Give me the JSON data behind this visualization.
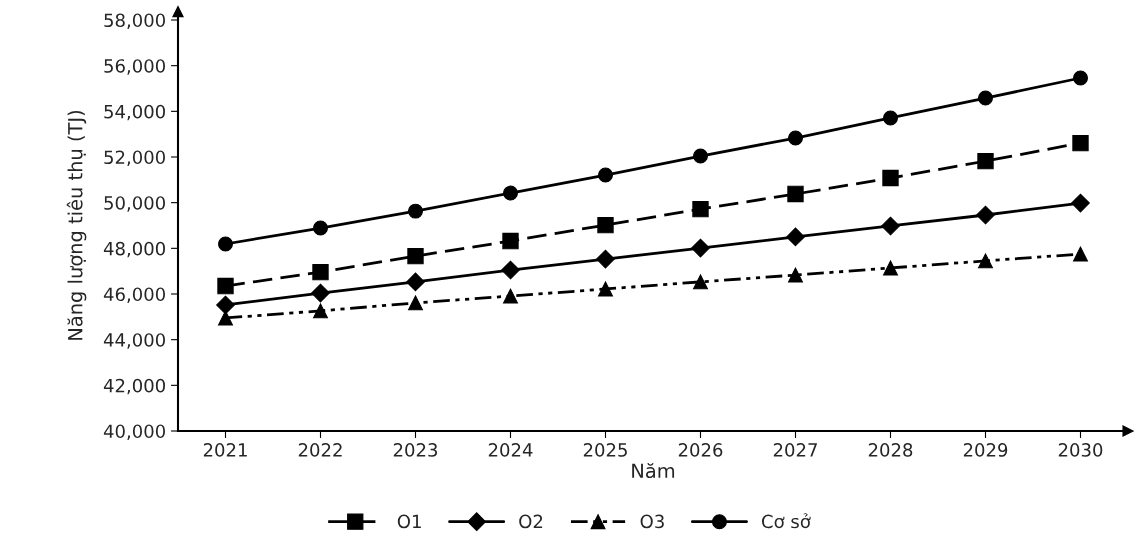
{
  "chart_data": {
    "type": "line",
    "xlabel": "Năm",
    "ylabel": "Năng lượng tiêu thụ (TJ)",
    "categories": [
      "2021",
      "2022",
      "2023",
      "2024",
      "2025",
      "2026",
      "2027",
      "2028",
      "2029",
      "2030"
    ],
    "series": [
      {
        "name": "O1",
        "color": "#000000",
        "marker": "square",
        "line_style": "dashed",
        "values": [
          46350,
          46960,
          47660,
          48320,
          49020,
          49720,
          50380,
          51080,
          51820,
          52610
        ]
      },
      {
        "name": "O2",
        "color": "#000000",
        "marker": "diamond",
        "line_style": "solid",
        "values": [
          45520,
          46040,
          46530,
          47050,
          47530,
          48010,
          48500,
          48980,
          49460,
          49980
        ]
      },
      {
        "name": "O3",
        "color": "#000000",
        "marker": "triangle",
        "line_style": "dashdotdot",
        "values": [
          44950,
          45260,
          45610,
          45910,
          46220,
          46530,
          46830,
          47140,
          47450,
          47750
        ]
      },
      {
        "name": "Cơ sở",
        "color": "#000000",
        "marker": "circle",
        "line_style": "solid",
        "values": [
          48190,
          48890,
          49630,
          50420,
          51210,
          52040,
          52830,
          53710,
          54580,
          55460
        ]
      }
    ],
    "ylim": [
      40000,
      58000
    ],
    "yticks": [
      {
        "value": 40000,
        "label": "40,000"
      },
      {
        "value": 42000,
        "label": "42,000"
      },
      {
        "value": 44000,
        "label": "44,000"
      },
      {
        "value": 46000,
        "label": "46,000"
      },
      {
        "value": 48000,
        "label": "48,000"
      },
      {
        "value": 50000,
        "label": "50,000"
      },
      {
        "value": 52000,
        "label": "52,000"
      },
      {
        "value": 54000,
        "label": "54,000"
      },
      {
        "value": 56000,
        "label": "56,000"
      },
      {
        "value": 58000,
        "label": "58,000"
      }
    ],
    "grid": false,
    "legend": "bottom"
  }
}
